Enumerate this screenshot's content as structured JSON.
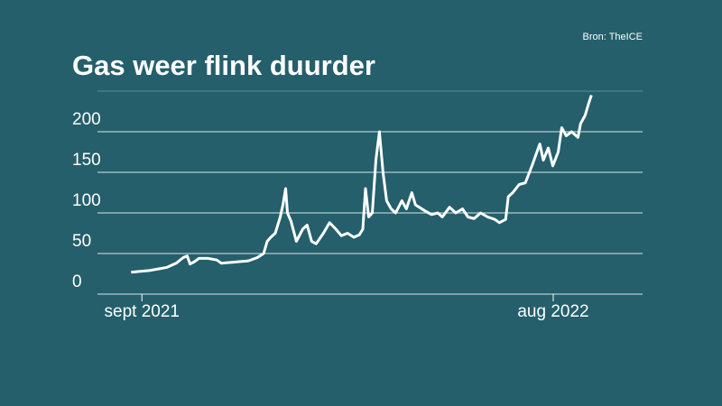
{
  "chart_data": {
    "type": "line",
    "title": "Gas weer flink duurder",
    "source": "Bron: TheICE",
    "x": [
      2021.643,
      2021.663,
      2021.683,
      2021.703,
      2021.723,
      2021.743,
      2021.759,
      2021.768,
      2021.774,
      2021.784,
      2021.794,
      2021.814,
      2021.834,
      2021.844,
      2021.864,
      2021.884,
      2021.904,
      2021.924,
      2021.938,
      2021.946,
      2021.954,
      2021.964,
      2021.975,
      2021.981,
      2021.987,
      2021.991,
      2021.999,
      2022.011,
      2022.025,
      2022.035,
      2022.045,
      2022.055,
      2022.071,
      2022.085,
      2022.099,
      2022.111,
      2022.125,
      2022.139,
      2022.151,
      2022.159,
      2022.165,
      2022.172,
      2022.18,
      2022.188,
      2022.196,
      2022.204,
      2022.212,
      2022.222,
      2022.232,
      2022.246,
      2022.256,
      2022.268,
      2022.276,
      2022.296,
      2022.312,
      2022.326,
      2022.336,
      2022.352,
      2022.366,
      2022.381,
      2022.393,
      2022.407,
      2022.421,
      2022.437,
      2022.453,
      2022.463,
      2022.477,
      2022.483,
      2022.493,
      2022.507,
      2022.521,
      2022.537,
      2022.553,
      2022.561,
      2022.572,
      2022.582,
      2022.594,
      2022.602,
      2022.612,
      2022.624,
      2022.638,
      2022.644,
      2022.654,
      2022.662,
      2022.668
    ],
    "series": [
      {
        "color": "#ffffff",
        "values": [
          27,
          28,
          29,
          31,
          33,
          38,
          45,
          47,
          37,
          40,
          44,
          44,
          42,
          38,
          39,
          40,
          41,
          45,
          50,
          65,
          70,
          75,
          95,
          110,
          130,
          100,
          90,
          65,
          80,
          85,
          65,
          62,
          75,
          88,
          80,
          72,
          75,
          70,
          73,
          80,
          130,
          95,
          100,
          165,
          200,
          150,
          115,
          105,
          100,
          115,
          105,
          125,
          110,
          103,
          98,
          100,
          95,
          107,
          100,
          105,
          95,
          93,
          100,
          95,
          92,
          88,
          92,
          120,
          125,
          135,
          137,
          160,
          185,
          165,
          180,
          158,
          175,
          205,
          195,
          200,
          193,
          210,
          220,
          235,
          245
        ]
      }
    ],
    "xlim": [
      2021.568,
      2022.782
    ],
    "xticks": [
      {
        "value": 2021.667,
        "label": "sept 2021"
      },
      {
        "value": 2022.583,
        "label": "aug 2022"
      }
    ],
    "ylim": [
      0,
      250
    ],
    "yticks": [
      0,
      50,
      100,
      150,
      200
    ],
    "grid": true
  }
}
